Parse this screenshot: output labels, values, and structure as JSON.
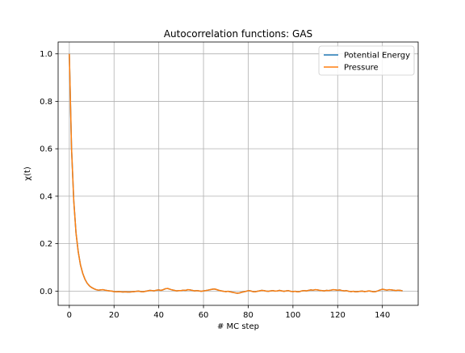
{
  "chart_data": {
    "type": "line",
    "title": "Autocorrelation functions: GAS",
    "xlabel": "# MC step",
    "ylabel": "χ(t)",
    "xlim": [
      -5,
      156
    ],
    "ylim": [
      -0.06,
      1.05
    ],
    "xticks": [
      0,
      20,
      40,
      60,
      80,
      100,
      120,
      140
    ],
    "yticks": [
      0.0,
      0.2,
      0.4,
      0.6,
      0.8,
      1.0
    ],
    "ytick_labels": [
      "0.0",
      "0.2",
      "0.4",
      "0.6",
      "0.8",
      "1.0"
    ],
    "grid": true,
    "legend_position": "upper right",
    "x": [
      0,
      1,
      2,
      3,
      4,
      5,
      6,
      7,
      8,
      9,
      10,
      11,
      12,
      13,
      14,
      15,
      16,
      17,
      18,
      19,
      20,
      21,
      22,
      23,
      24,
      25,
      26,
      27,
      28,
      29,
      30,
      31,
      32,
      33,
      34,
      35,
      36,
      37,
      38,
      39,
      40,
      41,
      42,
      43,
      44,
      45,
      46,
      47,
      48,
      49,
      50,
      51,
      52,
      53,
      54,
      55,
      56,
      57,
      58,
      59,
      60,
      61,
      62,
      63,
      64,
      65,
      66,
      67,
      68,
      69,
      70,
      71,
      72,
      73,
      74,
      75,
      76,
      77,
      78,
      79,
      80,
      81,
      82,
      83,
      84,
      85,
      86,
      87,
      88,
      89,
      90,
      91,
      92,
      93,
      94,
      95,
      96,
      97,
      98,
      99,
      100,
      101,
      102,
      103,
      104,
      105,
      106,
      107,
      108,
      109,
      110,
      111,
      112,
      113,
      114,
      115,
      116,
      117,
      118,
      119,
      120,
      121,
      122,
      123,
      124,
      125,
      126,
      127,
      128,
      129,
      130,
      131,
      132,
      133,
      134,
      135,
      136,
      137,
      138,
      139,
      140,
      141,
      142,
      143,
      144,
      145,
      146,
      147,
      148,
      149
    ],
    "series": [
      {
        "name": "Potential Energy",
        "color": "#1f77b4",
        "values": [
          1.0,
          0.6,
          0.38,
          0.245,
          0.165,
          0.11,
          0.075,
          0.05,
          0.033,
          0.022,
          0.015,
          0.01,
          0.006,
          0.004,
          0.005,
          0.006,
          0.004,
          0.002,
          0.001,
          0.0,
          -0.002,
          -0.003,
          -0.002,
          -0.003,
          -0.004,
          -0.003,
          -0.004,
          -0.004,
          -0.003,
          -0.002,
          -0.001,
          0.0,
          -0.002,
          -0.003,
          -0.001,
          0.001,
          0.003,
          0.002,
          0.001,
          0.004,
          0.005,
          0.003,
          0.006,
          0.01,
          0.011,
          0.008,
          0.005,
          0.003,
          0.001,
          0.002,
          0.002,
          0.004,
          0.003,
          0.006,
          0.005,
          0.003,
          0.001,
          0.002,
          0.001,
          -0.001,
          0.001,
          0.002,
          0.004,
          0.006,
          0.008,
          0.009,
          0.006,
          0.003,
          0.001,
          -0.001,
          -0.002,
          -0.001,
          -0.003,
          -0.005,
          -0.007,
          -0.009,
          -0.008,
          -0.005,
          -0.003,
          -0.001,
          0.002,
          0.001,
          -0.002,
          -0.003,
          -0.001,
          0.001,
          0.003,
          0.002,
          0.0,
          -0.001,
          0.001,
          0.002,
          0.0,
          0.001,
          0.003,
          0.001,
          -0.001,
          0.001,
          0.002,
          -0.001,
          -0.002,
          -0.001,
          -0.003,
          -0.002,
          0.001,
          0.002,
          0.001,
          0.003,
          0.005,
          0.004,
          0.006,
          0.005,
          0.003,
          0.002,
          0.001,
          0.003,
          0.002,
          0.004,
          0.006,
          0.005,
          0.004,
          0.005,
          0.002,
          0.001,
          0.002,
          -0.001,
          -0.002,
          -0.001,
          -0.003,
          -0.002,
          -0.001,
          0.0,
          -0.002,
          -0.001,
          0.001,
          -0.001,
          -0.003,
          -0.002,
          0.001,
          0.005,
          0.008,
          0.006,
          0.004,
          0.006,
          0.005,
          0.004,
          0.002,
          0.004,
          0.003,
          0.001
        ]
      },
      {
        "name": "Pressure",
        "color": "#ff7f0e",
        "values": [
          1.0,
          0.6,
          0.38,
          0.245,
          0.165,
          0.11,
          0.075,
          0.05,
          0.033,
          0.022,
          0.015,
          0.01,
          0.006,
          0.004,
          0.005,
          0.006,
          0.004,
          0.002,
          0.001,
          0.0,
          -0.002,
          -0.003,
          -0.002,
          -0.003,
          -0.004,
          -0.003,
          -0.004,
          -0.004,
          -0.003,
          -0.002,
          -0.001,
          0.0,
          -0.002,
          -0.003,
          -0.001,
          0.001,
          0.003,
          0.002,
          0.001,
          0.004,
          0.005,
          0.003,
          0.006,
          0.01,
          0.011,
          0.008,
          0.005,
          0.003,
          0.001,
          0.002,
          0.002,
          0.004,
          0.003,
          0.006,
          0.005,
          0.003,
          0.001,
          0.002,
          0.001,
          -0.001,
          0.001,
          0.002,
          0.004,
          0.006,
          0.008,
          0.009,
          0.006,
          0.003,
          0.001,
          -0.001,
          -0.002,
          -0.001,
          -0.003,
          -0.005,
          -0.007,
          -0.009,
          -0.008,
          -0.005,
          -0.003,
          -0.001,
          0.002,
          0.001,
          -0.002,
          -0.003,
          -0.001,
          0.001,
          0.003,
          0.002,
          0.0,
          -0.001,
          0.001,
          0.002,
          0.0,
          0.001,
          0.003,
          0.001,
          -0.001,
          0.001,
          0.002,
          -0.001,
          -0.002,
          -0.001,
          -0.003,
          -0.002,
          0.001,
          0.002,
          0.001,
          0.003,
          0.005,
          0.004,
          0.006,
          0.005,
          0.003,
          0.002,
          0.001,
          0.003,
          0.002,
          0.004,
          0.006,
          0.005,
          0.004,
          0.005,
          0.002,
          0.001,
          0.002,
          -0.001,
          -0.002,
          -0.001,
          -0.003,
          -0.002,
          -0.001,
          0.0,
          -0.002,
          -0.001,
          0.001,
          -0.001,
          -0.003,
          -0.002,
          0.001,
          0.005,
          0.008,
          0.006,
          0.004,
          0.006,
          0.005,
          0.004,
          0.002,
          0.004,
          0.003,
          0.001
        ]
      }
    ]
  }
}
